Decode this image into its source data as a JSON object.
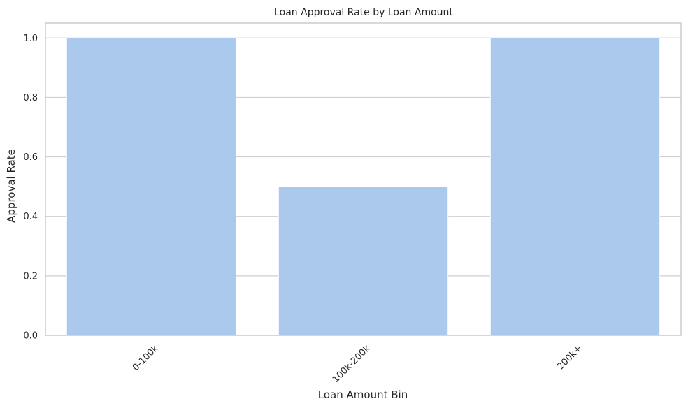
{
  "chart_data": {
    "type": "bar",
    "title": "Loan Approval Rate by Loan Amount",
    "xlabel": "Loan Amount Bin",
    "ylabel": "Approval Rate",
    "categories": [
      "0-100k",
      "100k-200k",
      "200k+"
    ],
    "values": [
      1.0,
      0.5,
      1.0
    ],
    "ylim": [
      0,
      1.05
    ],
    "yticks": [
      0.0,
      0.2,
      0.4,
      0.6,
      0.8,
      1.0
    ],
    "ytick_labels": [
      "0.0",
      "0.2",
      "0.4",
      "0.6",
      "0.8",
      "1.0"
    ],
    "grid": "horizontal",
    "colors": {
      "bar": "#abc9ed",
      "grid": "#cfcfcf",
      "frame": "#cccccc",
      "text": "#262626",
      "background": "#ffffff"
    }
  }
}
